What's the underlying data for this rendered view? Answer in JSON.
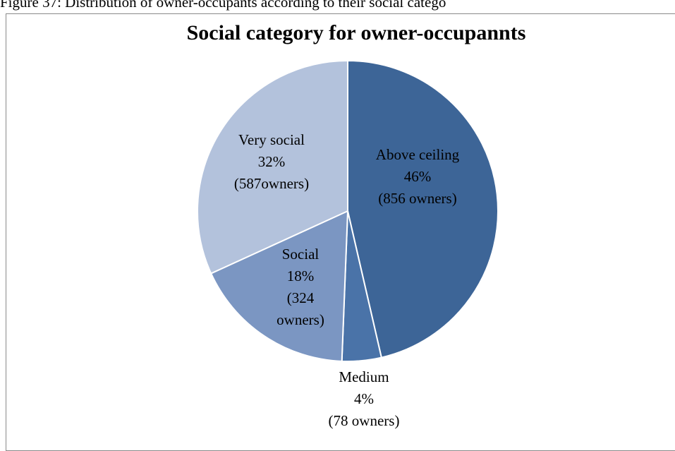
{
  "caption": "Figure 37: Distribution of owner-occupants according to their social catego",
  "chart_data": {
    "type": "pie",
    "title": "Social category for owner-occupannts",
    "slices": [
      {
        "name": "Above ceiling",
        "percent_label": "46%",
        "owners_label": "(856 owners)",
        "value": 856,
        "color": "#3d6597"
      },
      {
        "name": "Medium",
        "percent_label": "4%",
        "owners_label": "(78 owners)",
        "value": 78,
        "color": "#4a73a8"
      },
      {
        "name": "Social",
        "percent_label": "18%",
        "owners_label": "(324 owners)",
        "value": 324,
        "color": "#7b96c2"
      },
      {
        "name": "Very social",
        "percent_label": "32%",
        "owners_label": "(587owners)",
        "value": 587,
        "color": "#b3c2dc"
      }
    ],
    "start_angle": "12 o'clock",
    "direction": "clockwise",
    "legend": "none"
  }
}
